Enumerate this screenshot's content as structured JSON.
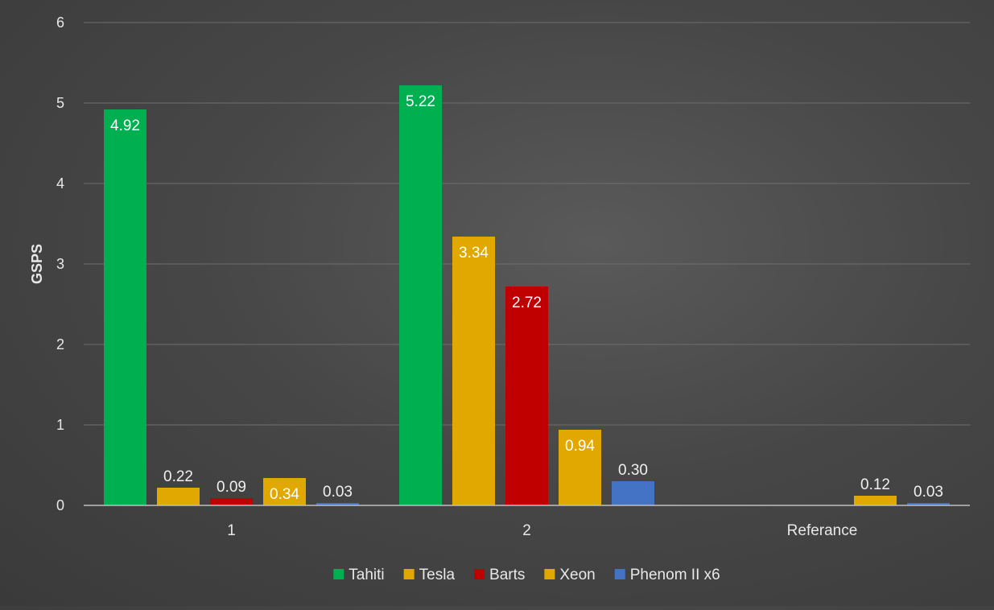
{
  "chart_data": {
    "type": "bar",
    "title": "",
    "xlabel": "",
    "ylabel": "GSPS",
    "ylim": [
      0,
      6
    ],
    "yticks": [
      "0",
      "1",
      "2",
      "3",
      "4",
      "5",
      "6"
    ],
    "grid": true,
    "legend_position": "bottom",
    "categories": [
      "1",
      "2",
      "Referance"
    ],
    "series": [
      {
        "name": "Tahiti",
        "color": "#00b050",
        "values": [
          4.92,
          5.22,
          null
        ],
        "labels": [
          "4.92",
          "5.22",
          ""
        ]
      },
      {
        "name": "Tesla",
        "color": "#e0a800",
        "values": [
          0.22,
          3.34,
          null
        ],
        "labels": [
          "0.22",
          "3.34",
          ""
        ]
      },
      {
        "name": "Barts",
        "color": "#c00000",
        "values": [
          0.09,
          2.72,
          null
        ],
        "labels": [
          "0.09",
          "2.72",
          ""
        ]
      },
      {
        "name": "Xeon",
        "color": "#e0a800",
        "values": [
          0.34,
          0.94,
          0.12
        ],
        "labels": [
          "0.34",
          "0.94",
          "0.12"
        ]
      },
      {
        "name": "Phenom II x6",
        "color": "#4472c4",
        "values": [
          0.03,
          0.3,
          0.03
        ],
        "labels": [
          "0.03",
          "0.30",
          "0.03"
        ]
      }
    ]
  }
}
